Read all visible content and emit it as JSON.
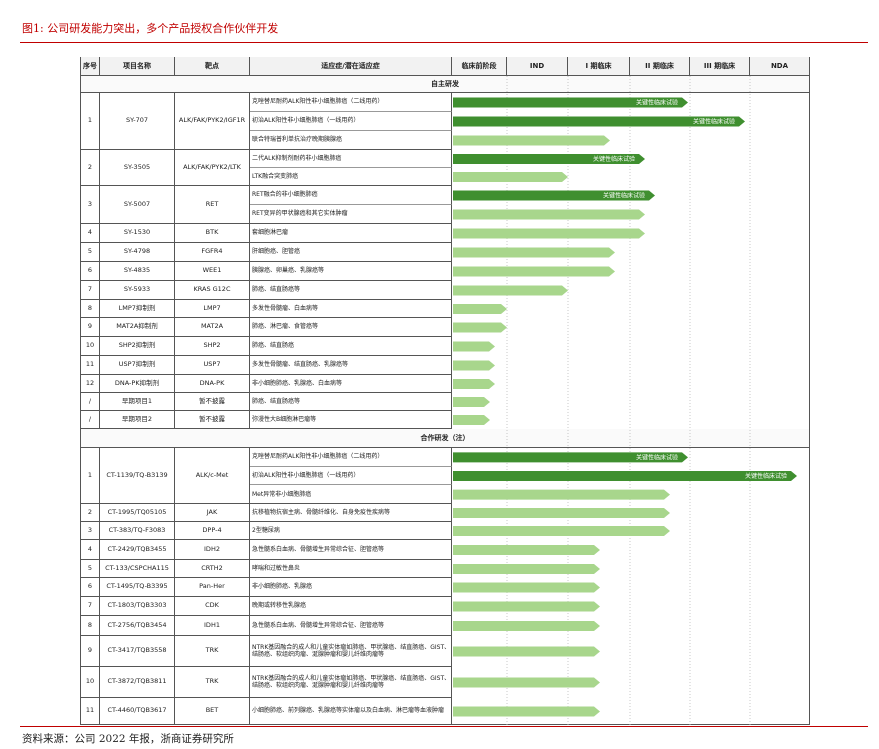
{
  "title": "图1:  公司研发能力突出，多个产品授权合作伙伴开发",
  "header": [
    "序号",
    "项目名称",
    "靶点",
    "适应症/潜在适应症",
    "临床前阶段",
    "IND",
    "I 期临床",
    "II 期临床",
    "III 期临床",
    "NDA"
  ],
  "sections": [
    {
      "title": "自主研发",
      "rows": [
        {
          "no": "1",
          "name": "SY-707",
          "target": "ALK/FAK/PYK2/IGF1R",
          "indications": [
            {
              "text": "克唑替尼耐药ALK阳性非小细胞肺癌（二线用药）",
              "label": "关键性临床试验"
            },
            {
              "text": "初治ALK阳性非小细胞肺癌（一线用药）",
              "label": "关键性临床试验"
            },
            {
              "text": "联合特瑞普利单抗治疗晚期胰腺癌"
            }
          ]
        },
        {
          "no": "2",
          "name": "SY-3505",
          "target": "ALK/FAK/PYK2/LTK",
          "indications": [
            {
              "text": "二代ALK抑制剂耐药非小细胞肺癌",
              "label": "关键性临床试验"
            },
            {
              "text": "LTK融合突变肺癌"
            }
          ]
        },
        {
          "no": "3",
          "name": "SY-5007",
          "target": "RET",
          "indications": [
            {
              "text": "RET融合的非小细胞肺癌",
              "label": "关键性临床试验"
            },
            {
              "text": "RET变异的甲状腺癌和其它实体肿瘤"
            }
          ]
        },
        {
          "no": "4",
          "name": "SY-1530",
          "target": "BTK",
          "indications": [
            {
              "text": "套细胞淋巴瘤"
            }
          ]
        },
        {
          "no": "5",
          "name": "SY-4798",
          "target": "FGFR4",
          "indications": [
            {
              "text": "肝细胞癌、胆管癌"
            }
          ]
        },
        {
          "no": "6",
          "name": "SY-4835",
          "target": "WEE1",
          "indications": [
            {
              "text": "胰腺癌、卵巢癌、乳腺癌等"
            }
          ]
        },
        {
          "no": "7",
          "name": "SY-5933",
          "target": "KRAS G12C",
          "indications": [
            {
              "text": "肺癌、结直肠癌等"
            }
          ]
        },
        {
          "no": "8",
          "name": "LMP7抑制剂",
          "target": "LMP7",
          "indications": [
            {
              "text": "多发性骨髓瘤、白血病等"
            }
          ]
        },
        {
          "no": "9",
          "name": "MAT2A抑制剂",
          "target": "MAT2A",
          "indications": [
            {
              "text": "肺癌、淋巴瘤、食管癌等"
            }
          ]
        },
        {
          "no": "10",
          "name": "SHP2抑制剂",
          "target": "SHP2",
          "indications": [
            {
              "text": "肺癌、结直肠癌"
            }
          ]
        },
        {
          "no": "11",
          "name": "USP7抑制剂",
          "target": "USP7",
          "indications": [
            {
              "text": "多发性骨髓瘤、结直肠癌、乳腺癌等"
            }
          ]
        },
        {
          "no": "12",
          "name": "DNA-PK抑制剂",
          "target": "DNA-PK",
          "indications": [
            {
              "text": "非小细胞肺癌、乳腺癌、白血病等"
            }
          ]
        },
        {
          "no": "/",
          "name": "早期项目1",
          "target": "暂不披露",
          "indications": [
            {
              "text": "肺癌、结直肠癌等"
            }
          ]
        },
        {
          "no": "/",
          "name": "早期项目2",
          "target": "暂不披露",
          "indications": [
            {
              "text": "弥漫性大B细胞淋巴瘤等"
            }
          ]
        }
      ]
    },
    {
      "title": "合作研发（注）",
      "rows": [
        {
          "no": "1",
          "name": "CT-1139/TQ-B3139",
          "target": "ALK/c-Met",
          "indications": [
            {
              "text": "克唑替尼耐药ALK阳性非小细胞肺癌（二线用药）",
              "label": "关键性临床试验"
            },
            {
              "text": "初治ALK阳性非小细胞肺癌（一线用药）",
              "label": "关键性临床试验"
            },
            {
              "text": "Met异常非小细胞肺癌"
            }
          ]
        },
        {
          "no": "2",
          "name": "CT-1995/TQ05105",
          "target": "JAK",
          "indications": [
            {
              "text": "抗移植物抗宿主病、骨髓纤维化、自身免疫性疾病等"
            }
          ]
        },
        {
          "no": "3",
          "name": "CT-383/TQ-F3083",
          "target": "DPP-4",
          "indications": [
            {
              "text": "2型糖尿病"
            }
          ]
        },
        {
          "no": "4",
          "name": "CT-2429/TQB3455",
          "target": "IDH2",
          "indications": [
            {
              "text": "急性髓系白血病、骨髓增生异常综合征、胆管癌等"
            }
          ]
        },
        {
          "no": "5",
          "name": "CT-133/CSPCHA115",
          "target": "CRTH2",
          "indications": [
            {
              "text": "哮喘和过敏性鼻炎"
            }
          ]
        },
        {
          "no": "6",
          "name": "CT-1495/TQ-B3395",
          "target": "Pan-Her",
          "indications": [
            {
              "text": "非小细胞肺癌、乳腺癌"
            }
          ]
        },
        {
          "no": "7",
          "name": "CT-1803/TQB3303",
          "target": "CDK",
          "indications": [
            {
              "text": "晚期或转移性乳腺癌"
            }
          ]
        },
        {
          "no": "8",
          "name": "CT-2756/TQB3454",
          "target": "IDH1",
          "indications": [
            {
              "text": "急性髓系白血病、骨髓增生异常综合征、胆管癌等"
            }
          ]
        },
        {
          "no": "9",
          "name": "CT-3417/TQB3558",
          "target": "TRK",
          "indications": [
            {
              "text": "NTRK基因融合的成人和儿童实体瘤如肺癌、甲状腺癌、结直肠癌、GIST、结肠癌、软组织肉瘤、涎腺肿瘤和婴儿纤维肉瘤等"
            }
          ]
        },
        {
          "no": "10",
          "name": "CT-3872/TQB3811",
          "target": "TRK",
          "indications": [
            {
              "text": "NTRK基因融合的成人和儿童实体瘤如肺癌、甲状腺癌、结直肠癌、GIST、结肠癌、软组织肉瘤、涎腺肿瘤和婴儿纤维肉瘤等"
            }
          ]
        },
        {
          "no": "11",
          "name": "CT-4460/TQB3617",
          "target": "BET",
          "indications": [
            {
              "text": "小细胞肺癌、前列腺癌、乳腺癌等实体瘤以及白血病、淋巴瘤等血液肿瘤"
            }
          ]
        }
      ]
    }
  ],
  "source": "资料来源：公司 2022 年报，浙商证券研究所"
}
